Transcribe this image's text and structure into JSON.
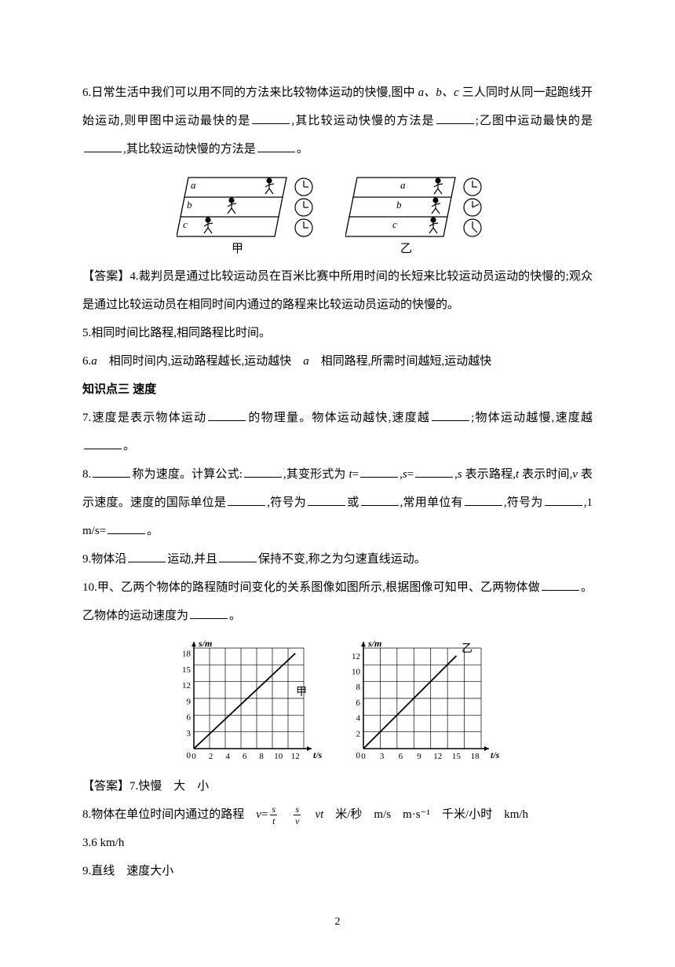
{
  "q6": {
    "prefix": "6.日常生活中我们可以用不同的方法来比较物体运动的快慢,图中 ",
    "abc": "a、b、c ",
    "mid1": "三人同时从同一起跑线开始运动,则甲图中运动最快的是",
    "mid2": ",其比较运动快慢的方法是",
    "mid3": ";乙图中运动最快的是",
    "mid4": ",其比较运动快慢的方法是",
    "end": "。"
  },
  "fig1": {
    "labels": {
      "a": "a",
      "b": "b",
      "c": "c"
    },
    "cap_jia": "甲",
    "cap_yi": "乙",
    "colors": {
      "stroke": "#000000",
      "fill": "#ffffff"
    }
  },
  "ansBlock": {
    "a4": "【答案】4.裁判员是通过比较运动员在百米比赛中所用时间的长短来比较运动员运动的快慢的;观众是通过比较运动员在相同时间内通过的路程来比较运动员运动的快慢的。",
    "a5": "5.相同时间比路程,相同路程比时间。",
    "a6_p1": "6.",
    "a6_a": "a",
    "a6_p2": "　相同时间内,运动路程越长,运动越快　",
    "a6_a2": "a",
    "a6_p3": "　相同路程,所需时间越短,运动越快"
  },
  "heading3": "知识点三  速度",
  "q7": {
    "p1": "7.速度是表示物体运动",
    "p2": "的物理量。物体运动越快,速度越",
    "p3": ";物体运动越慢,速度越",
    "p4": "。"
  },
  "q8": {
    "p1": "8.",
    "p2": "称为速度。计算公式:",
    "p3": ",其变形式为 ",
    "t": "t",
    "eq": "=",
    "p4": ",",
    "s": "s",
    "p5": ",",
    "s2": "s ",
    "p6": "表示路程,",
    "t2": "t ",
    "p7": "表示时间,",
    "v": "v ",
    "p8": "表示速度。速度的国际单位是",
    "p9": ",符号为",
    "p10": "或",
    "p11": ",常用单位有",
    "p12": ",符号为",
    "p13": ",1 m/s=",
    "p14": "。"
  },
  "q9": {
    "p1": "9.物体沿",
    "p2": "运动,并且",
    "p3": "保持不变,称之为匀速直线运动。"
  },
  "q10": {
    "p1": "10.甲、乙两个物体的路程随时间变化的关系图像如图所示,根据图像可知甲、乙两物体做",
    "p2": "。乙物体的运动速度为",
    "p3": "。"
  },
  "graphs": {
    "ylabel": "s/m",
    "xlabel": "t/s",
    "label_jia": "甲",
    "label_yi": "乙",
    "jia": {
      "x_ticks": [
        "0",
        "2",
        "4",
        "6",
        "8",
        "10",
        "12"
      ],
      "y_ticks": [
        "3",
        "6",
        "9",
        "12",
        "15",
        "18"
      ],
      "xlim": [
        0,
        13
      ],
      "ylim": [
        0,
        19
      ],
      "line": [
        [
          0,
          0
        ],
        [
          12,
          18
        ]
      ],
      "colors": {
        "axis": "#000000",
        "grid": "#000000",
        "line": "#000000",
        "bg": "#ffffff"
      }
    },
    "yi": {
      "x_ticks": [
        "0",
        "3",
        "6",
        "9",
        "12",
        "15",
        "18"
      ],
      "y_ticks": [
        "2",
        "4",
        "6",
        "8",
        "10",
        "12"
      ],
      "xlim": [
        0,
        19
      ],
      "ylim": [
        0,
        13
      ],
      "line": [
        [
          0,
          0
        ],
        [
          15,
          12
        ]
      ],
      "colors": {
        "axis": "#000000",
        "grid": "#000000",
        "line": "#000000",
        "bg": "#ffffff"
      }
    }
  },
  "ansBlock2": {
    "a7": "【答案】7.快慢　大　小",
    "a8_p1": "8.物体在单位时间内通过的路程　",
    "a8_v": "v",
    "a8_eq": "=",
    "a8_frac1_n": "s",
    "a8_frac1_d": "t",
    "a8_sp1": "　",
    "a8_frac2_n": "s",
    "a8_frac2_d": "v",
    "a8_sp2": "　",
    "a8_vt": "vt",
    "a8_rest": "　米/秒　m/s　m·s⁻¹　千米/小时　km/h",
    "a8_line2": "3.6 km/h",
    "a9": "9.直线　速度大小"
  },
  "pageNum": "2"
}
